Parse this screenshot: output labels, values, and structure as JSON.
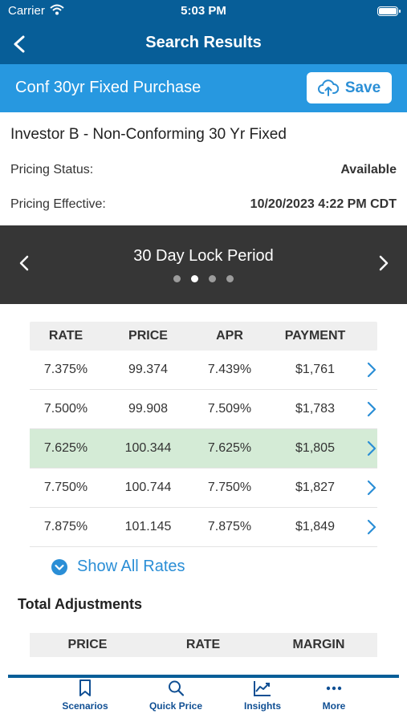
{
  "status_bar": {
    "carrier": "Carrier",
    "time": "5:03 PM"
  },
  "nav": {
    "title": "Search Results"
  },
  "scenario": {
    "name": "Conf 30yr Fixed Purchase",
    "save_label": "Save"
  },
  "product": {
    "name": "Investor B -  Non-Conforming 30 Yr Fixed",
    "pricing_status_label": "Pricing Status:",
    "pricing_status_value": "Available",
    "pricing_effective_label": "Pricing Effective:",
    "pricing_effective_value": "10/20/2023 4:22 PM CDT"
  },
  "carousel": {
    "period": "30 Day Lock Period",
    "page_count": 4,
    "active_page": 2
  },
  "rates_table": {
    "headers": [
      "RATE",
      "PRICE",
      "APR",
      "PAYMENT"
    ],
    "rows": [
      {
        "rate": "7.375%",
        "price": "99.374",
        "apr": "7.439%",
        "payment": "$1,761",
        "selected": false
      },
      {
        "rate": "7.500%",
        "price": "99.908",
        "apr": "7.509%",
        "payment": "$1,783",
        "selected": false
      },
      {
        "rate": "7.625%",
        "price": "100.344",
        "apr": "7.625%",
        "payment": "$1,805",
        "selected": true
      },
      {
        "rate": "7.750%",
        "price": "100.744",
        "apr": "7.750%",
        "payment": "$1,827",
        "selected": false
      },
      {
        "rate": "7.875%",
        "price": "101.145",
        "apr": "7.875%",
        "payment": "$1,849",
        "selected": false
      }
    ]
  },
  "show_all_rates": {
    "label": "Show All Rates"
  },
  "total_adjustments": {
    "title": "Total Adjustments",
    "headers": [
      "PRICE",
      "RATE",
      "MARGIN"
    ]
  },
  "tabbar": {
    "items": [
      {
        "label": "Scenarios",
        "icon": "bookmark-icon"
      },
      {
        "label": "Quick Price",
        "icon": "search-icon"
      },
      {
        "label": "Insights",
        "icon": "chart-trend-icon"
      },
      {
        "label": "More",
        "icon": "more-dots-icon"
      }
    ]
  },
  "colors": {
    "nav_blue": "#075e98",
    "scenario_blue": "#2798e0",
    "accent_blue": "#2a8ed6",
    "selected_row_green": "#d4ebd6",
    "carousel_dark": "#363636"
  }
}
